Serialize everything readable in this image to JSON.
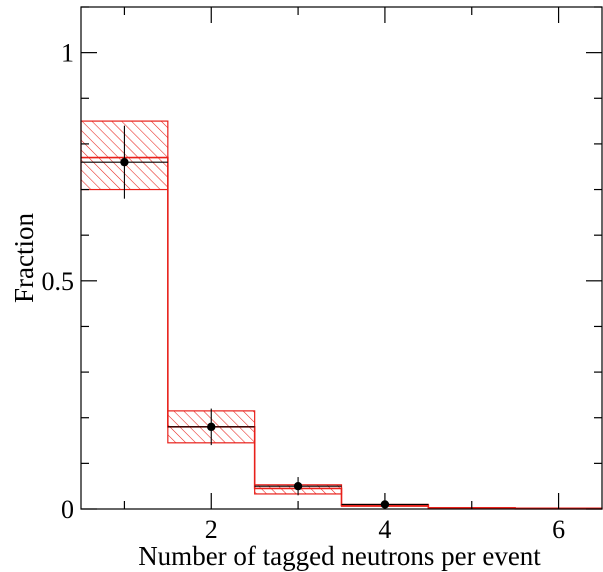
{
  "chart_data": {
    "type": "bar",
    "xlabel": "Number of tagged neutrons per event",
    "ylabel": "Fraction",
    "xlim": [
      0.5,
      6.5
    ],
    "ylim": [
      0,
      1.1
    ],
    "x_ticks": [
      2,
      4,
      6
    ],
    "x_tick_labels": [
      "2",
      "4",
      "6"
    ],
    "y_ticks": [
      0,
      0.5,
      1
    ],
    "y_tick_labels": [
      "0",
      "0.5",
      "1"
    ],
    "grid": false,
    "series": [
      {
        "style": "histogram-with-hatched-uncertainty",
        "color": "#e8201a",
        "bins": [
          {
            "low": 0.5,
            "high": 1.5,
            "value": 0.77,
            "band_low": 0.7,
            "band_high": 0.85
          },
          {
            "low": 1.5,
            "high": 2.5,
            "value": 0.18,
            "band_low": 0.145,
            "band_high": 0.215
          },
          {
            "low": 2.5,
            "high": 3.5,
            "value": 0.045,
            "band_low": 0.033,
            "band_high": 0.053
          },
          {
            "low": 3.5,
            "high": 4.5,
            "value": 0.008,
            "band_low": 0.006,
            "band_high": 0.01
          },
          {
            "low": 4.5,
            "high": 5.5,
            "value": 0.002,
            "band_low": 0.001,
            "band_high": 0.003
          },
          {
            "low": 5.5,
            "high": 6.5,
            "value": 0.001,
            "band_low": 0.0,
            "band_high": 0.002
          }
        ]
      },
      {
        "style": "points-with-error-bars",
        "color": "#000000",
        "points": [
          {
            "x": 1,
            "y": 0.76,
            "err": 0.08,
            "xerr": 0.5
          },
          {
            "x": 2,
            "y": 0.18,
            "err": 0.04,
            "xerr": 0.5
          },
          {
            "x": 3,
            "y": 0.05,
            "err": 0.02,
            "xerr": 0.5
          },
          {
            "x": 4,
            "y": 0.01,
            "err": 0.005,
            "xerr": 0.5
          }
        ]
      }
    ]
  }
}
